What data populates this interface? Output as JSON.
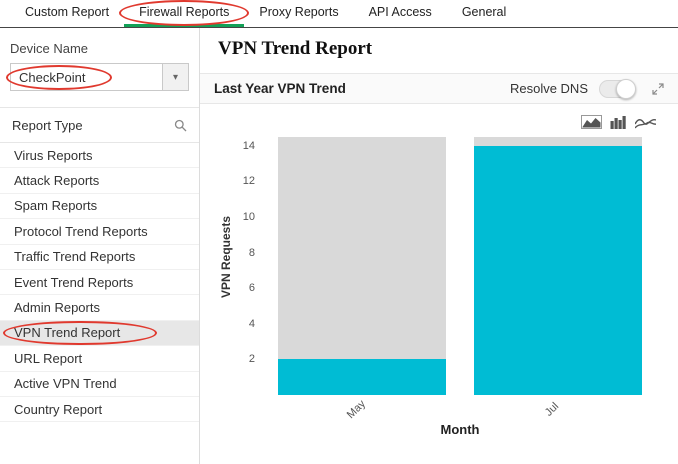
{
  "tabs": {
    "items": [
      {
        "label": "Custom Report",
        "active": false
      },
      {
        "label": "Firewall Reports",
        "active": true
      },
      {
        "label": "Proxy Reports",
        "active": false
      },
      {
        "label": "API Access",
        "active": false
      },
      {
        "label": "General",
        "active": false
      }
    ]
  },
  "sidebar": {
    "device_name_label": "Device Name",
    "device_value": "CheckPoint",
    "caret_char": "▾",
    "report_type_label": "Report Type",
    "items": [
      "Virus Reports",
      "Attack Reports",
      "Spam Reports",
      "Protocol Trend Reports",
      "Traffic Trend Reports",
      "Event Trend Reports",
      "Admin Reports",
      "VPN Trend Report",
      "URL Report",
      "Active VPN Trend",
      "Country Report"
    ],
    "selected": "VPN Trend Report"
  },
  "main": {
    "page_title": "VPN Trend Report",
    "panel_title": "Last Year VPN Trend",
    "resolve_dns_label": "Resolve DNS",
    "resolve_dns_state": "off"
  },
  "icons": {
    "search": "magnifier",
    "caret_down": "chevron",
    "expand": "diagonal-arrows",
    "chart_types": [
      "area-chart",
      "bar-chart",
      "line-chart"
    ]
  },
  "chart_data": {
    "type": "bar",
    "categories": [
      "May",
      "Jul"
    ],
    "series": [
      {
        "name": "VPN Requests",
        "values": [
          2,
          14
        ],
        "color": "#00bcd4"
      },
      {
        "name": "column-background",
        "values": [
          14.5,
          14.5
        ],
        "color": "#d9d9d9"
      }
    ],
    "title": "Last Year VPN Trend",
    "xlabel": "Month",
    "ylabel": "VPN Requests",
    "ylim": [
      0,
      14.5
    ],
    "yticks": [
      2,
      4,
      6,
      8,
      10,
      12,
      14
    ],
    "grid": false,
    "legend": "none"
  },
  "colors": {
    "accent_green": "#12a157",
    "bar_cyan": "#00bcd4",
    "bar_background": "#d9d9d9",
    "annotation_red": "#e0392e"
  }
}
